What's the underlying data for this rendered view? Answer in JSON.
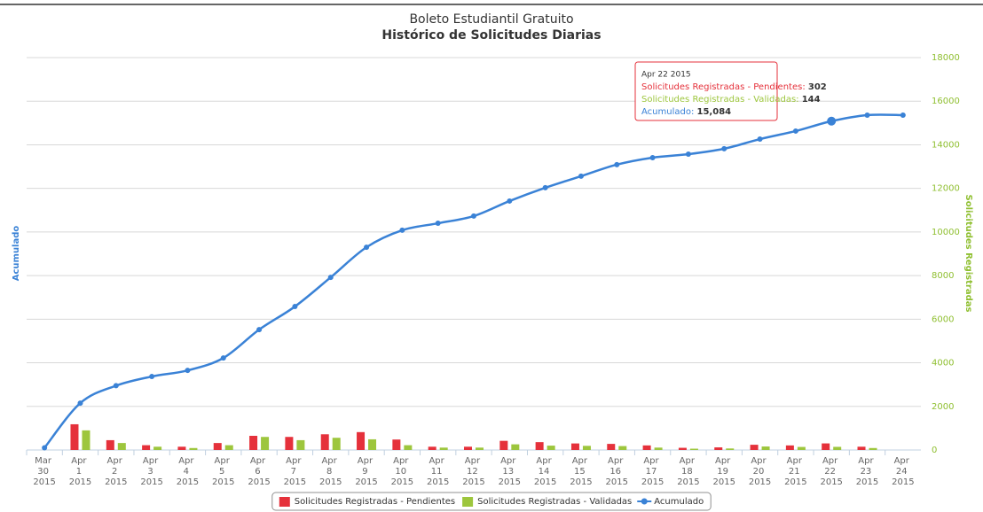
{
  "chart_data": {
    "type": "combo",
    "title": "Boleto Estudiantil Gratuito",
    "subtitle": "Histórico de Solicitudes Diarias",
    "y_axis_title": "Acumulado",
    "y2_axis_title": "Solicitudes Registradas",
    "categories": [
      "Mar 30 2015",
      "Apr 1 2015",
      "Apr 2 2015",
      "Apr 3 2015",
      "Apr 4 2015",
      "Apr 5 2015",
      "Apr 6 2015",
      "Apr 7 2015",
      "Apr 8 2015",
      "Apr 9 2015",
      "Apr 10 2015",
      "Apr 11 2015",
      "Apr 12 2015",
      "Apr 13 2015",
      "Apr 14 2015",
      "Apr 15 2015",
      "Apr 16 2015",
      "Apr 17 2015",
      "Apr 18 2015",
      "Apr 19 2015",
      "Apr 20 2015",
      "Apr 21 2015",
      "Apr 22 2015",
      "Apr 23 2015",
      "Apr 24 2015"
    ],
    "series": [
      {
        "name": "Solicitudes Registradas - Pendientes",
        "kind": "bar",
        "color": "#e5313b",
        "values": [
          0,
          1180,
          450,
          220,
          150,
          320,
          650,
          600,
          720,
          820,
          480,
          150,
          150,
          420,
          360,
          300,
          280,
          210,
          100,
          120,
          240,
          210,
          302,
          150,
          0
        ]
      },
      {
        "name": "Solicitudes Registradas - Validadas",
        "kind": "bar",
        "color": "#9dc63d",
        "values": [
          0,
          900,
          320,
          150,
          90,
          220,
          600,
          450,
          560,
          490,
          220,
          110,
          110,
          260,
          200,
          190,
          180,
          110,
          60,
          70,
          160,
          140,
          144,
          90,
          0
        ]
      },
      {
        "name": "Acumulado",
        "kind": "line",
        "color": "#3a82d6",
        "values": [
          100,
          2150,
          2950,
          3370,
          3650,
          4220,
          5520,
          6580,
          7920,
          9300,
          10080,
          10400,
          10730,
          11420,
          12030,
          12560,
          13090,
          13410,
          13570,
          13820,
          14260,
          14630,
          15084,
          15360,
          15360
        ]
      }
    ],
    "ylim": [
      0,
      18000
    ],
    "yticks": [
      0,
      2000,
      4000,
      6000,
      8000,
      10000,
      12000,
      14000,
      16000,
      18000
    ],
    "grid": true,
    "legend": "bottom",
    "tooltip": {
      "index": 22,
      "value_labels": [
        "302",
        "144",
        "15,084"
      ]
    }
  }
}
